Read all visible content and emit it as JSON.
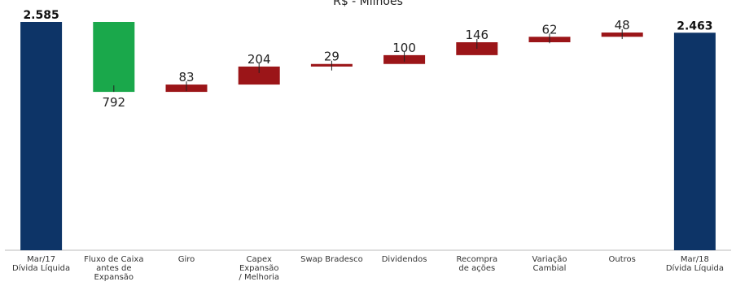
{
  "chart_data": {
    "type": "waterfall",
    "title": "R$ - Milhões",
    "xlabel": "",
    "ylabel": "",
    "grid": false,
    "legend": "none",
    "ylim": [
      0,
      2585
    ],
    "categories": [
      "Mar/17\nDívida Líquida",
      "Fluxo de Caixa\nantes de\nExpansão",
      "Giro",
      "Capex\nExpansão\n/ Melhoria",
      "Swap Bradesco",
      "Dividendos",
      "Recompra\nde ações",
      "Variação\nCambial",
      "Outros",
      "Mar/18\nDívida Líquida"
    ],
    "value_labels": [
      "2.585",
      "792",
      "83",
      "204",
      "29",
      "100",
      "146",
      "62",
      "48",
      "2.463"
    ],
    "values": [
      2585,
      -792,
      83,
      204,
      29,
      100,
      146,
      62,
      48,
      2463
    ],
    "kinds": [
      "total",
      "decrease",
      "increase",
      "increase",
      "increase",
      "increase",
      "increase",
      "increase",
      "increase",
      "total"
    ],
    "colors": {
      "total": "#0d3467",
      "decrease": "#1aa84b",
      "increase": "#9b1518"
    }
  }
}
